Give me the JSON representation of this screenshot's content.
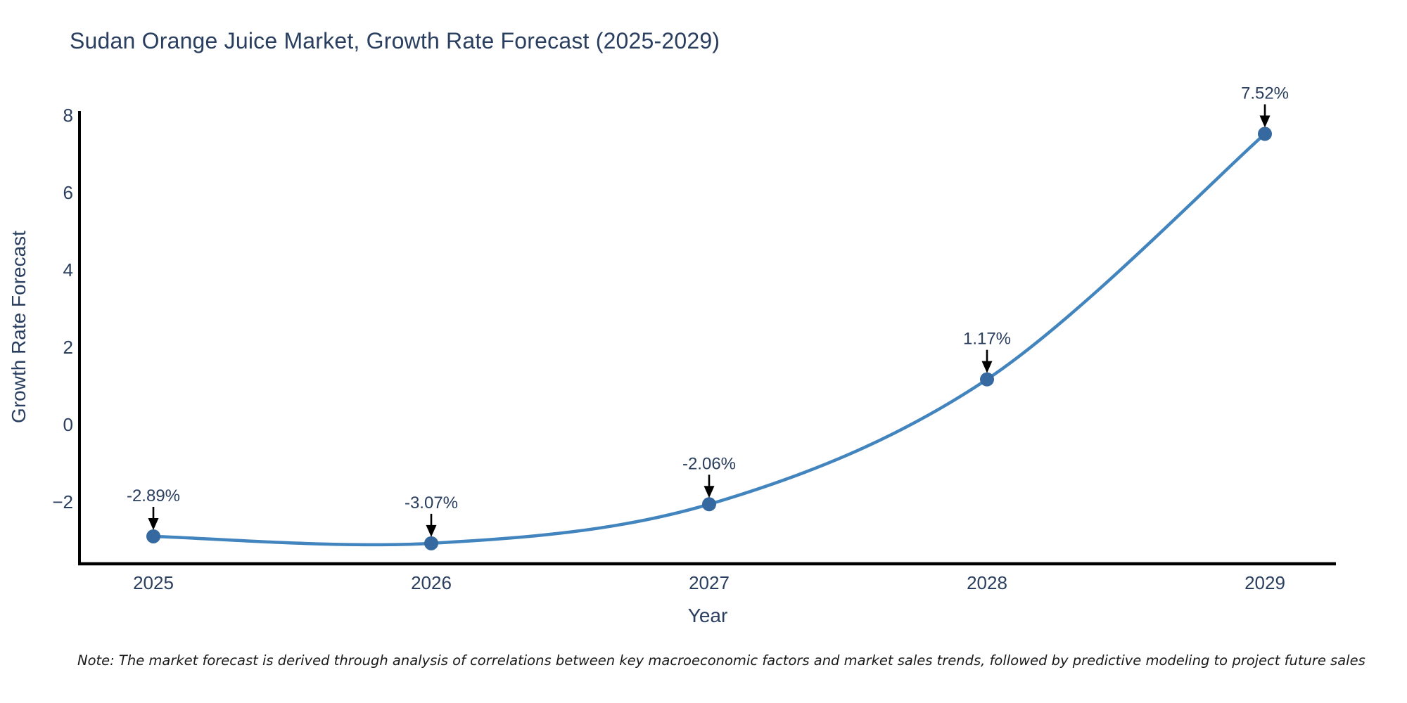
{
  "title": "Sudan Orange Juice Market, Growth Rate Forecast (2025-2029)",
  "note": "Note: The market forecast is derived through analysis of correlations between key macroeconomic factors and market sales trends, followed by predictive modeling to project future sales",
  "colors": {
    "text": "#2a3f5f",
    "axis_line": "#000000",
    "line": "#4284bd",
    "marker": "#35699f",
    "arrow": "#000000",
    "background": "#ffffff"
  },
  "chart_data": {
    "type": "line",
    "title": "Sudan Orange Juice Market, Growth Rate Forecast (2025-2029)",
    "xlabel": "Year",
    "ylabel": "Growth Rate Forecast",
    "x": [
      2025,
      2026,
      2027,
      2028,
      2029
    ],
    "y": [
      -2.89,
      -3.07,
      -2.06,
      1.17,
      7.52
    ],
    "point_labels": [
      "-2.89%",
      "-3.07%",
      "-2.06%",
      "1.17%",
      "7.52%"
    ],
    "xtick_labels": [
      "2025",
      "2026",
      "2027",
      "2028",
      "2029"
    ],
    "ytick_values": [
      8,
      6,
      4,
      2,
      0,
      -2
    ],
    "ytick_labels": [
      "8",
      "6",
      "4",
      "2",
      "0",
      "−2"
    ],
    "xlim": [
      2024.73,
      2029.26
    ],
    "ylim": [
      -3.6,
      8.1
    ],
    "grid": false,
    "legend": false,
    "line_shape": "spline",
    "annotations_have_arrows": true
  }
}
